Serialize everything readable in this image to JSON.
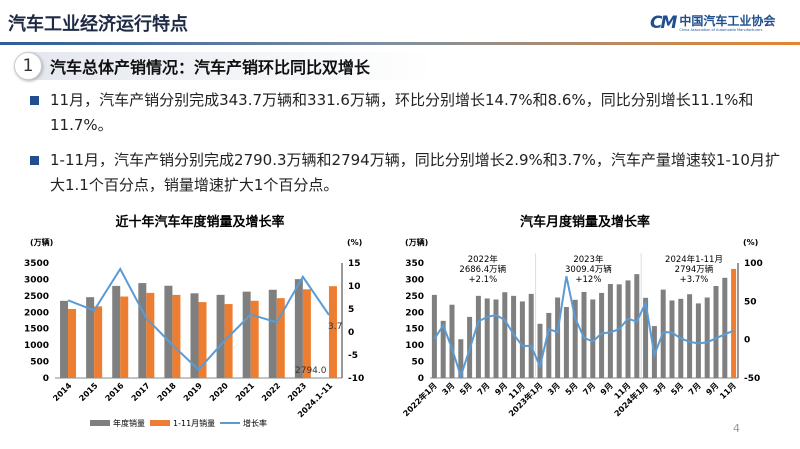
{
  "header": {
    "title": "汽车工业经济运行特点",
    "logo_mark": "CM",
    "logo_cn": "中国汽车工业协会",
    "logo_en": "China Association of Automobile Manufacturers"
  },
  "section": {
    "number": "1",
    "title": "汽车总体产销情况：汽车产销环比同比双增长"
  },
  "bullets": [
    "11月，汽车产销分别完成343.7万辆和331.6万辆，环比分别增长14.7%和8.6%，同比分别增长11.1%和11.7%。",
    "1-11月，汽车产销分别完成2790.3万辆和2794万辆，同比分别增长2.9%和3.7%，汽车产量增速较1-10月扩大1.1个百分点，销量增速扩大1个百分点。"
  ],
  "page_number": "4",
  "colors": {
    "gray": "#7f7f7f",
    "orange": "#ed7d31",
    "blue": "#5b9bd5",
    "brand": "#1f4f8f"
  },
  "chart_data": [
    {
      "type": "bar",
      "title": "近十年汽车年度销量及增长率",
      "ylabel": "(万辆)",
      "y2label": "(%)",
      "ylim": [
        0,
        3500
      ],
      "yticks": [
        0,
        500,
        1000,
        1500,
        2000,
        2500,
        3000,
        3500
      ],
      "y2lim": [
        -10,
        15
      ],
      "y2ticks": [
        -10,
        -5,
        0,
        5,
        10,
        15
      ],
      "legend_position": "bottom",
      "categories": [
        "2014",
        "2015",
        "2016",
        "2017",
        "2018",
        "2019",
        "2020",
        "2021",
        "2022",
        "2023",
        "2024.1-11"
      ],
      "series": [
        {
          "name": "年度销量",
          "type": "bar",
          "color": "#7f7f7f",
          "values": [
            2349,
            2460,
            2803,
            2888,
            2808,
            2577,
            2531,
            2628,
            2686,
            3009,
            null
          ]
        },
        {
          "name": "1-11月销量",
          "type": "bar",
          "color": "#ed7d31",
          "values": [
            2100,
            2180,
            2480,
            2590,
            2530,
            2310,
            2250,
            2350,
            2430,
            2700,
            2794
          ]
        },
        {
          "name": "增长率",
          "type": "line",
          "axis": "right",
          "color": "#5b9bd5",
          "values": [
            6.9,
            4.7,
            13.7,
            3.0,
            -2.8,
            -8.2,
            -1.9,
            3.8,
            2.1,
            12.0,
            3.7
          ]
        }
      ],
      "annotations": [
        "3.7",
        "2794.0"
      ]
    },
    {
      "type": "bar",
      "title": "汽车月度销量及增长率",
      "ylabel": "(万辆)",
      "y2label": "(%)",
      "ylim": [
        0,
        350
      ],
      "yticks": [
        0,
        50,
        100,
        150,
        200,
        250,
        300,
        350
      ],
      "y2lim": [
        -50,
        100
      ],
      "y2ticks": [
        -50,
        0,
        50,
        100
      ],
      "tick_labels": [
        "2022年1月",
        "3月",
        "5月",
        "7月",
        "9月",
        "11月",
        "2023年1月",
        "3月",
        "5月",
        "7月",
        "9月",
        "11月",
        "2024年1月",
        "3月",
        "5月",
        "7月",
        "9月",
        "11月"
      ],
      "series": [
        {
          "type": "bar",
          "color": "#7f7f7f",
          "highlight_last": "#ed7d31",
          "values": [
            253,
            174,
            223,
            118,
            186,
            250,
            242,
            239,
            261,
            250,
            233,
            256,
            165,
            198,
            245,
            216,
            238,
            262,
            239,
            259,
            286,
            285,
            297,
            316,
            244,
            158,
            269,
            236,
            241,
            255,
            227,
            245,
            280,
            305,
            332
          ]
        },
        {
          "type": "line",
          "axis": "right",
          "color": "#5b9bd5",
          "values": [
            0.9,
            18.7,
            -11.7,
            -47.6,
            -12.6,
            23.8,
            29.7,
            32.1,
            25.7,
            6.9,
            -7.9,
            -8.4,
            -35,
            13.8,
            9.7,
            82.7,
            27.9,
            2.5,
            -2.4,
            8.2,
            9.5,
            13.8,
            27.4,
            23.5,
            47.9,
            -19.9,
            9.9,
            9.3,
            1.6,
            -2.7,
            -5.0,
            -3.4,
            1.8,
            7.0,
            11.7
          ]
        }
      ],
      "annotations": [
        [
          "2022年",
          "2686.4万辆",
          "+2.1%"
        ],
        [
          "2023年",
          "3009.4万辆",
          "+12%"
        ],
        [
          "2024年1-11月",
          "2794万辆",
          "+3.7%"
        ]
      ]
    }
  ]
}
